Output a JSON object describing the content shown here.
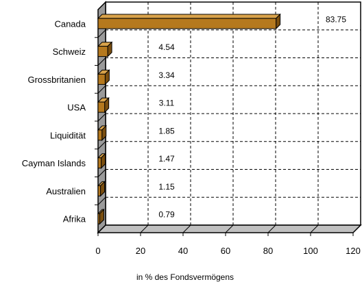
{
  "chart_data": {
    "type": "bar",
    "orientation": "horizontal",
    "style": "3d",
    "categories": [
      "Canada",
      "Schweiz",
      "Grossbritanien",
      "USA",
      "Liquidität",
      "Cayman Islands",
      "Australien",
      "Afrika"
    ],
    "values": [
      83.75,
      4.54,
      3.34,
      3.11,
      1.85,
      1.47,
      1.15,
      0.79
    ],
    "value_labels": [
      "83.75",
      "4.54",
      "3.34",
      "3.11",
      "1.85",
      "1.47",
      "1.15",
      "0.79"
    ],
    "title": "",
    "xlabel": "in % des Fondsvermögens",
    "ylabel": "",
    "xlim": [
      0,
      120
    ],
    "xticks": [
      "0",
      "20",
      "40",
      "60",
      "80",
      "100",
      "120"
    ],
    "grid": true,
    "legend": "none",
    "colors": {
      "bar_front": "#b5791e",
      "bar_top": "#d8a24a",
      "bar_side": "#7a4e0f",
      "wall": "#ffffff",
      "floor": "#c0c0c0",
      "grid": "#000000"
    }
  }
}
